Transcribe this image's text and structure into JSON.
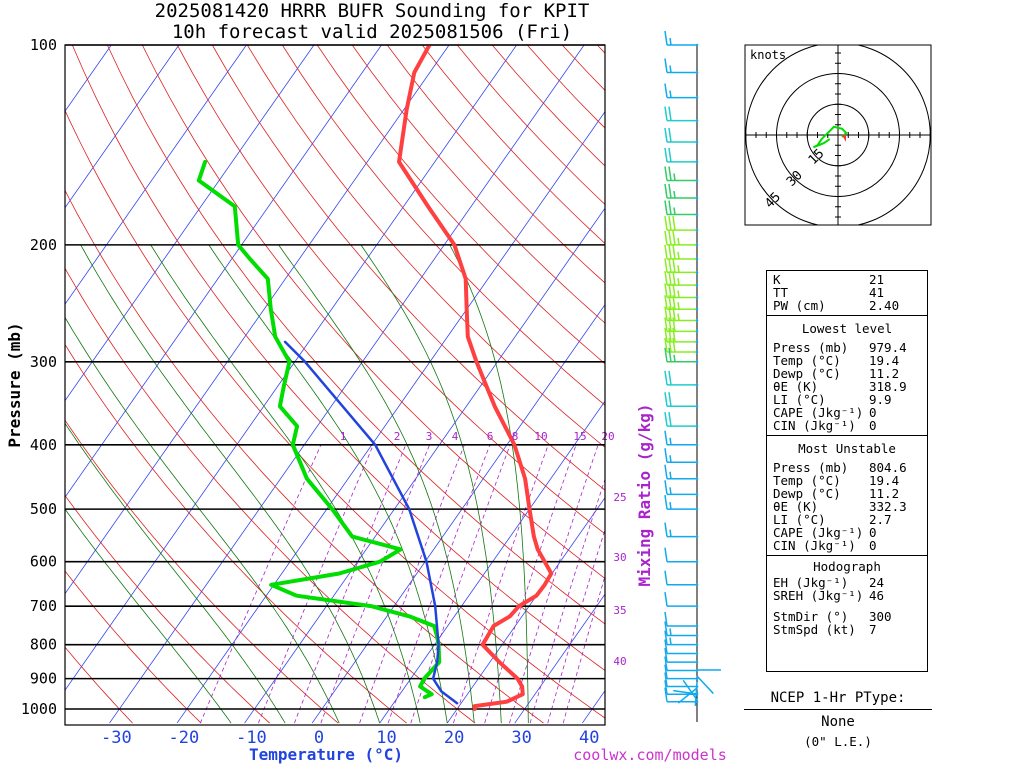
{
  "title": "2025081420 HRRR BUFR Sounding for KPIT",
  "subtitle": "10h forecast valid 2025081506 (Fri)",
  "watermark": "coolwx.com/models",
  "axes": {
    "ylabel": "Pressure (mb)",
    "xlabel": "Temperature (°C)",
    "mixing_label": "Mixing Ratio (g/kg)"
  },
  "chart_data": {
    "type": "line",
    "title": "2025081420 HRRR BUFR Sounding for KPIT",
    "subtitle": "10h forecast valid 2025081506 (Fri)",
    "xlabel": "Temperature (°C)",
    "ylabel": "Pressure (mb)",
    "x_ticks": [
      -30,
      -20,
      -10,
      0,
      10,
      20,
      30,
      40
    ],
    "y_ticks": [
      100,
      200,
      300,
      400,
      500,
      600,
      700,
      800,
      900,
      1000
    ],
    "y_scale": "log",
    "ylim": [
      1000,
      100
    ],
    "mixing_ratio_ticks": [
      "1",
      "2",
      "3",
      "4",
      "6",
      "8",
      "10",
      "15",
      "20"
    ],
    "mixing_ratio_side_ticks": [
      "25",
      "30",
      "35",
      "40"
    ],
    "series": [
      {
        "name": "Temperature",
        "color": "#ff4040",
        "points": [
          [
            1000,
            22.6
          ],
          [
            990,
            22.3
          ],
          [
            975,
            26.6
          ],
          [
            950,
            28.2
          ],
          [
            925,
            27.3
          ],
          [
            900,
            25.8
          ],
          [
            850,
            21.4
          ],
          [
            800,
            17.1
          ],
          [
            750,
            16.8
          ],
          [
            725,
            18.2
          ],
          [
            700,
            18.5
          ],
          [
            675,
            20.0
          ],
          [
            650,
            20.1
          ],
          [
            625,
            19.9
          ],
          [
            600,
            17.7
          ],
          [
            575,
            15.4
          ],
          [
            550,
            13.5
          ],
          [
            500,
            10.0
          ],
          [
            450,
            6.2
          ],
          [
            400,
            1.1
          ],
          [
            350,
            -5.8
          ],
          [
            300,
            -13.1
          ],
          [
            275,
            -17.0
          ],
          [
            250,
            -20.0
          ],
          [
            225,
            -23.3
          ],
          [
            200,
            -28.5
          ],
          [
            175,
            -36.4
          ],
          [
            150,
            -45.3
          ],
          [
            125,
            -49.6
          ],
          [
            110,
            -52.3
          ],
          [
            100,
            -52.9
          ]
        ]
      },
      {
        "name": "Dewpoint",
        "color": "#00dd00",
        "points": [
          [
            960,
            14.0
          ],
          [
            950,
            14.7
          ],
          [
            925,
            12.2
          ],
          [
            900,
            12.0
          ],
          [
            850,
            12.5
          ],
          [
            800,
            10.6
          ],
          [
            775,
            9.4
          ],
          [
            750,
            8.0
          ],
          [
            725,
            3.3
          ],
          [
            700,
            -3.4
          ],
          [
            675,
            -15.5
          ],
          [
            650,
            -20.4
          ],
          [
            625,
            -11.5
          ],
          [
            600,
            -6.7
          ],
          [
            575,
            -4.9
          ],
          [
            550,
            -13.4
          ],
          [
            500,
            -19.2
          ],
          [
            450,
            -26.1
          ],
          [
            400,
            -31.7
          ],
          [
            375,
            -33.0
          ],
          [
            350,
            -37.6
          ],
          [
            325,
            -39.2
          ],
          [
            300,
            -40.8
          ],
          [
            275,
            -45.5
          ],
          [
            250,
            -49.0
          ],
          [
            225,
            -52.6
          ],
          [
            210,
            -57.3
          ],
          [
            200,
            -60.5
          ],
          [
            175,
            -65.0
          ],
          [
            160,
            -73.0
          ],
          [
            150,
            -74.0
          ]
        ]
      },
      {
        "name": "Parcel",
        "color": "#2244dd",
        "points": [
          [
            980,
            19.4
          ],
          [
            940,
            15.8
          ],
          [
            900,
            13.3
          ],
          [
            850,
            12.2
          ],
          [
            800,
            10.6
          ],
          [
            700,
            6.1
          ],
          [
            600,
            0.2
          ],
          [
            500,
            -7.8
          ],
          [
            400,
            -19.5
          ],
          [
            300,
            -38.5
          ],
          [
            280,
            -43.5
          ]
        ]
      }
    ],
    "wind_barbs": {
      "pressures": [
        100,
        110,
        120,
        130,
        140,
        150,
        160,
        170,
        180,
        190,
        200,
        210,
        220,
        230,
        240,
        250,
        260,
        270,
        280,
        290,
        300,
        325,
        350,
        375,
        400,
        425,
        450,
        475,
        500,
        550,
        600,
        650,
        700,
        750,
        775,
        800,
        825,
        850,
        875,
        900,
        925,
        950,
        975
      ],
      "speeds_kt": [
        15,
        15,
        15,
        20,
        20,
        20,
        25,
        25,
        25,
        30,
        35,
        35,
        35,
        35,
        35,
        35,
        35,
        30,
        30,
        30,
        25,
        20,
        20,
        20,
        15,
        15,
        15,
        15,
        15,
        15,
        10,
        10,
        10,
        10,
        15,
        15,
        10,
        10,
        10,
        10,
        10,
        10,
        10
      ]
    },
    "hodograph": {
      "ring_labels": [
        "15",
        "30",
        "45"
      ],
      "units_label": "knots",
      "u_kt": [
        2,
        3,
        4,
        2,
        -2,
        -5,
        -8,
        -10,
        -12,
        -7,
        -4
      ],
      "v_kt": [
        -1,
        0,
        1,
        3,
        4,
        1,
        -2,
        -5,
        -6,
        -4,
        -2
      ]
    }
  },
  "indices": {
    "top": [
      {
        "label": "K",
        "value": "21"
      },
      {
        "label": "TT",
        "value": "41"
      },
      {
        "label": "PW (cm)",
        "value": "2.40"
      }
    ],
    "lowest": {
      "header": "Lowest level",
      "rows": [
        {
          "label": "Press (mb)",
          "value": "979.4"
        },
        {
          "label": "Temp (°C)",
          "value": "19.4"
        },
        {
          "label": "Dewp (°C)",
          "value": "11.2"
        },
        {
          "label": "θE (K)",
          "value": "318.9"
        },
        {
          "label": "LI (°C)",
          "value": "9.9"
        },
        {
          "label": "CAPE (Jkg⁻¹)",
          "value": "0"
        },
        {
          "label": "CIN (Jkg⁻¹)",
          "value": "0"
        }
      ]
    },
    "most_unstable": {
      "header": "Most Unstable",
      "rows": [
        {
          "label": "Press (mb)",
          "value": "804.6"
        },
        {
          "label": "Temp (°C)",
          "value": "19.4"
        },
        {
          "label": "Dewp (°C)",
          "value": "11.2"
        },
        {
          "label": "θE (K)",
          "value": "332.3"
        },
        {
          "label": "LI (°C)",
          "value": "2.7"
        },
        {
          "label": "CAPE (Jkg⁻¹)",
          "value": "0"
        },
        {
          "label": "CIN (Jkg⁻¹)",
          "value": "0"
        }
      ]
    },
    "hodograph": {
      "header": "Hodograph",
      "rows": [
        {
          "label": "EH (Jkg⁻¹)",
          "value": "24"
        },
        {
          "label": "SREH (Jkg⁻¹)",
          "value": "46"
        }
      ],
      "rows2": [
        {
          "label": "StmDir (°)",
          "value": "300"
        },
        {
          "label": "StmSpd (kt)",
          "value": "7"
        }
      ]
    }
  },
  "ptype": {
    "title": "NCEP 1-Hr PType:",
    "value": "None",
    "note": "(0\" L.E.)"
  },
  "colors": {
    "temperature": "#ff4040",
    "dewpoint": "#00dd00",
    "parcel": "#2244dd",
    "isotherm": "#3344ee",
    "dry_adiabat": "#dd2222",
    "moist_adiabat": "#117711",
    "mixing_ratio": "#aa22cc",
    "wind": "#00aaff",
    "axis_label_blue": "#2244dd"
  }
}
